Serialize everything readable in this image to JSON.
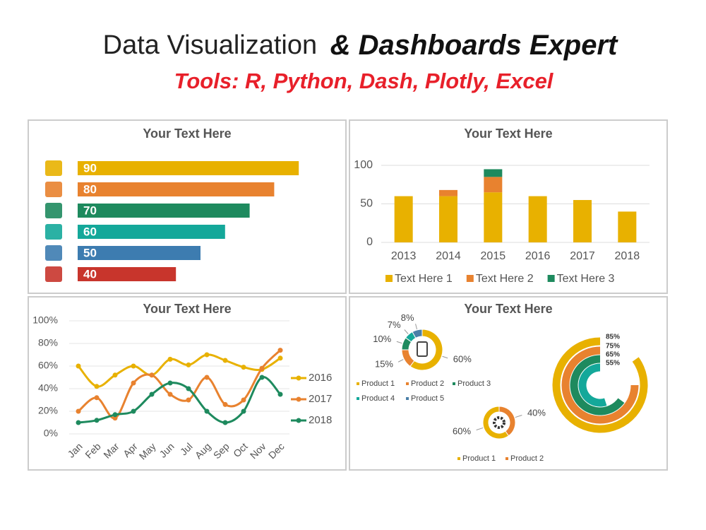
{
  "header": {
    "title": "Data Visualization",
    "title_emphasis": "& Dashboards Expert",
    "subtitle": "Tools: R, Python, Dash, Plotly, Excel"
  },
  "chart_data": [
    {
      "type": "hbar",
      "title": "Your Text Here",
      "values": [
        90,
        80,
        70,
        60,
        50,
        40
      ],
      "colors": [
        "#e8b100",
        "#e8822f",
        "#1e8a5e",
        "#14a89a",
        "#3d7cb0",
        "#c8352c"
      ],
      "xlim": [
        0,
        100
      ]
    },
    {
      "type": "stacked_bar",
      "title": "Your Text Here",
      "categories": [
        "2013",
        "2014",
        "2015",
        "2016",
        "2017",
        "2018"
      ],
      "series": [
        {
          "name": "Text Here 1",
          "color": "#e8b100",
          "values": [
            60,
            60,
            65,
            60,
            55,
            40
          ]
        },
        {
          "name": "Text Here 2",
          "color": "#e8822f",
          "values": [
            0,
            8,
            20,
            0,
            0,
            0
          ]
        },
        {
          "name": "Text Here 3",
          "color": "#1e8a5e",
          "values": [
            0,
            0,
            10,
            0,
            0,
            0
          ]
        }
      ],
      "ylim": [
        0,
        100
      ],
      "yticks": [
        0,
        50,
        100
      ],
      "grid": true
    },
    {
      "type": "line",
      "title": "Your Text Here",
      "categories": [
        "Jan",
        "Feb",
        "Mar",
        "Apr",
        "May",
        "Jun",
        "Jul",
        "Aug",
        "Sep",
        "Oct",
        "Nov",
        "Dec"
      ],
      "series": [
        {
          "name": "2016",
          "color": "#e8b100",
          "values": [
            60,
            42,
            52,
            60,
            52,
            66,
            61,
            70,
            65,
            59,
            57,
            67
          ]
        },
        {
          "name": "2017",
          "color": "#e8822f",
          "values": [
            20,
            32,
            14,
            45,
            52,
            35,
            30,
            50,
            26,
            30,
            58,
            74
          ]
        },
        {
          "name": "2018",
          "color": "#1e8a5e",
          "values": [
            10,
            12,
            17,
            20,
            35,
            45,
            40,
            20,
            10,
            20,
            50,
            35
          ]
        }
      ],
      "ylim": [
        0,
        100
      ],
      "yticks": [
        {
          "value": 0,
          "label": "0%"
        },
        {
          "value": 20,
          "label": "20%"
        },
        {
          "value": 40,
          "label": "40%"
        },
        {
          "value": 60,
          "label": "60%"
        },
        {
          "value": 80,
          "label": "80%"
        },
        {
          "value": 100,
          "label": "100%"
        }
      ],
      "grid": true
    },
    {
      "type": "donut",
      "title": "Your Text Here",
      "categories": [
        "Product 1",
        "Product 2",
        "Product 3",
        "Product 4",
        "Product 5"
      ],
      "values": [
        60,
        15,
        10,
        7,
        8
      ],
      "value_labels": [
        "60%",
        "15%",
        "10%",
        "7%",
        "8%"
      ],
      "colors": [
        "#e8b100",
        "#e8822f",
        "#1e8a5e",
        "#14a89a",
        "#4a7fa8"
      ]
    },
    {
      "type": "donut",
      "categories": [
        "Product 1",
        "Product 2"
      ],
      "values": [
        60,
        40
      ],
      "value_labels": [
        "60%",
        "40%"
      ],
      "colors": [
        "#e8b100",
        "#e8822f"
      ]
    },
    {
      "type": "radial_bar",
      "values": [
        85,
        75,
        65,
        55
      ],
      "value_labels": [
        "85%",
        "75%",
        "65%",
        "55%"
      ],
      "colors": [
        "#e8b100",
        "#e8822f",
        "#1e8a5e",
        "#14a89a"
      ],
      "ylim": [
        0,
        100
      ]
    }
  ]
}
